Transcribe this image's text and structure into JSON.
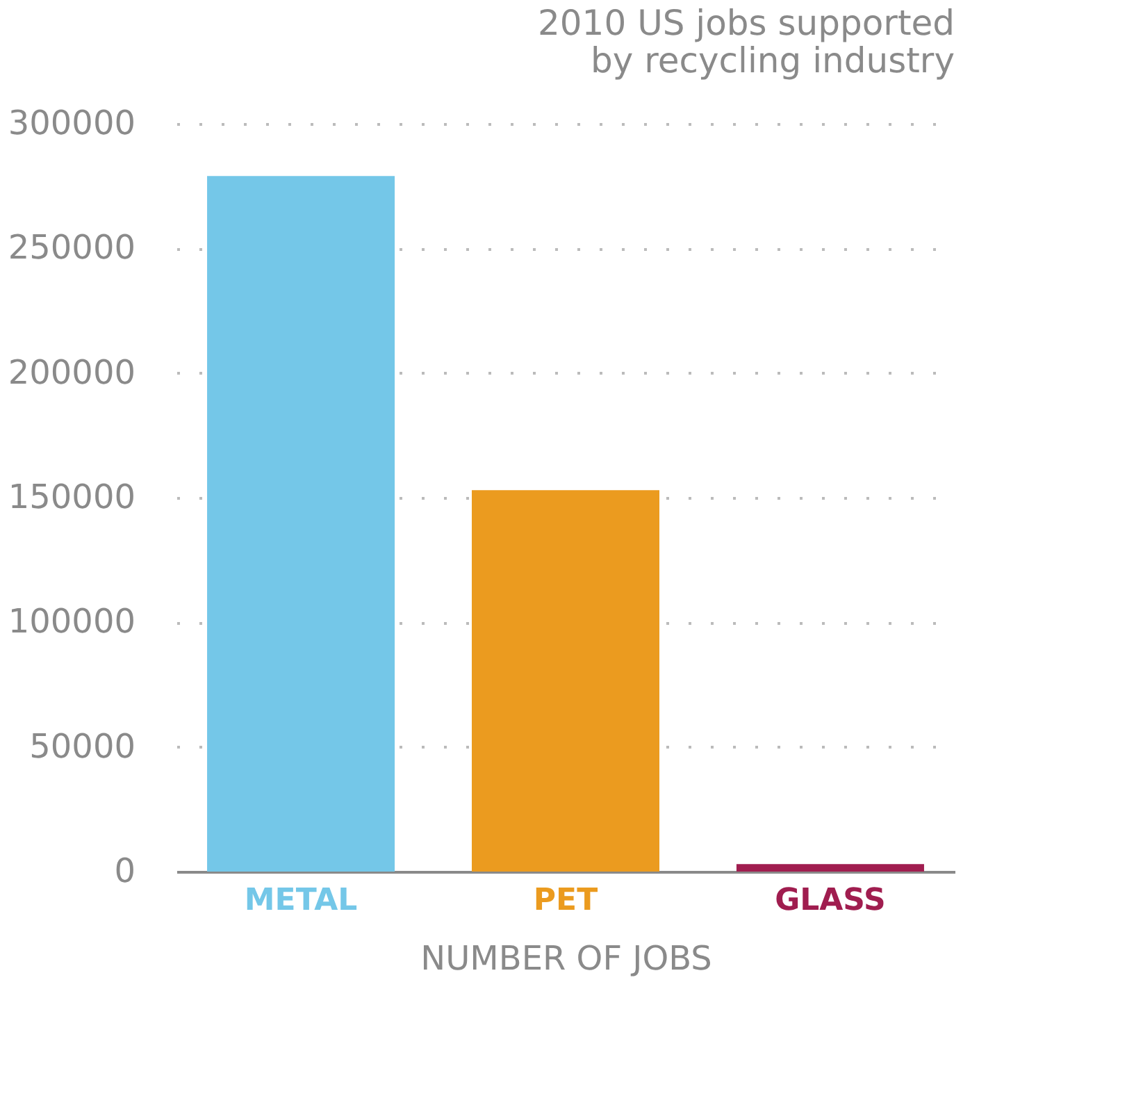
{
  "chart_data": {
    "type": "bar",
    "title": [
      "2010 US jobs supported",
      "by recycling industry"
    ],
    "xlabel": "NUMBER OF JOBS",
    "categories": [
      "METAL",
      "PET",
      "GLASS"
    ],
    "values": [
      279000,
      153000,
      3000
    ],
    "colors": [
      "#74c7e8",
      "#eb9b1f",
      "#a01d4f"
    ],
    "ylim": [
      0,
      300000
    ],
    "yticks": [
      0,
      50000,
      100000,
      150000,
      200000,
      250000,
      300000
    ],
    "grid": "y",
    "legend": false
  }
}
